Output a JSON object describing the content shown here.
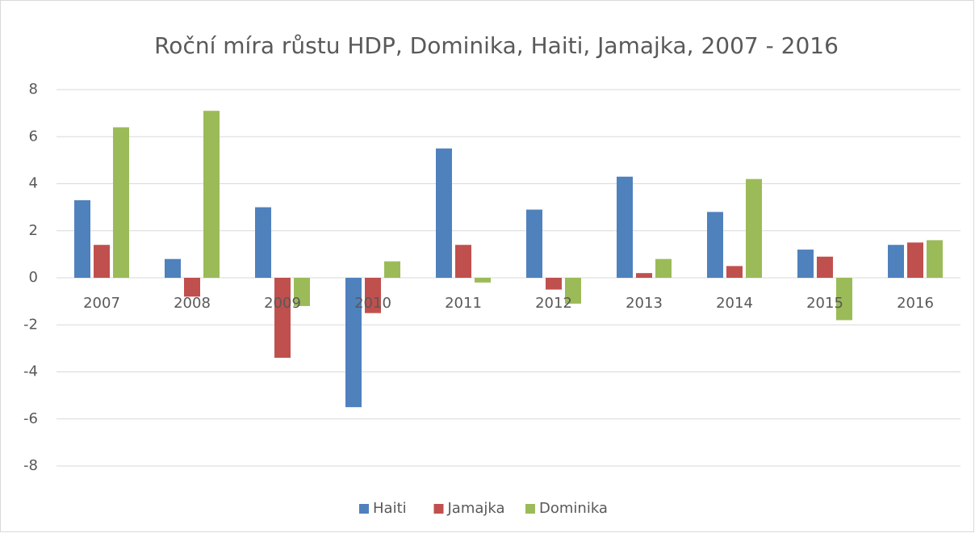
{
  "chart_data": {
    "type": "bar",
    "title": "Roční míra růstu HDP, Dominika, Haiti, Jamajka, 2007 - 2016",
    "categories": [
      "2007",
      "2008",
      "2009",
      "2010",
      "2011",
      "2012",
      "2013",
      "2014",
      "2015",
      "2016"
    ],
    "series": [
      {
        "name": "Haiti",
        "color": "#4f81bd",
        "values": [
          3.3,
          0.8,
          3.0,
          -5.5,
          5.5,
          2.9,
          4.3,
          2.8,
          1.2,
          1.4
        ]
      },
      {
        "name": "Jamajka",
        "color": "#c0504d",
        "values": [
          1.4,
          -0.8,
          -3.4,
          -1.5,
          1.4,
          -0.5,
          0.2,
          0.5,
          0.9,
          1.5
        ]
      },
      {
        "name": "Dominika",
        "color": "#9bbb59",
        "values": [
          6.4,
          7.1,
          -1.2,
          0.7,
          -0.2,
          -1.1,
          0.8,
          4.2,
          -1.8,
          1.6
        ]
      }
    ],
    "ylim": [
      -8,
      8
    ],
    "yticks": [
      -8,
      -6,
      -4,
      -2,
      0,
      2,
      4,
      6,
      8
    ],
    "grid": true,
    "legend": "bottom"
  }
}
